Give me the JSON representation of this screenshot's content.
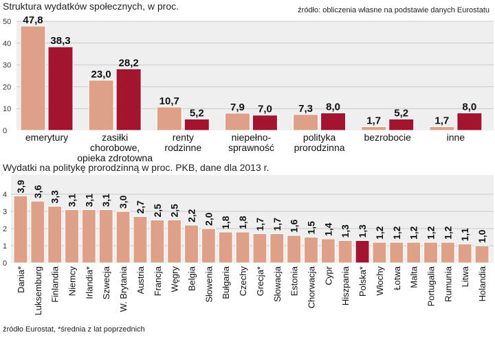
{
  "chart_data": [
    {
      "type": "bar",
      "title": "Struktura wydatków społecznych, w proc.",
      "source": "źródło: obliczenia własne na podstawie danych Eurostatu",
      "categories": [
        [
          "emerytury"
        ],
        [
          "zasiłki",
          "chorobowe,",
          "opieka zdrotowna"
        ],
        [
          "renty",
          "rodzinne"
        ],
        [
          "niepełno-",
          "sprawność"
        ],
        [
          "polityka",
          "prorodzinna"
        ],
        [
          "bezrobocie"
        ],
        [
          "inne"
        ]
      ],
      "series": [
        {
          "values": [
            47.8,
            23.0,
            10.7,
            7.9,
            7.3,
            1.7,
            1.7
          ],
          "labels": [
            "47,8",
            "23,0",
            "10,7",
            "7,9",
            "7,3",
            "1,7",
            "1,7"
          ]
        },
        {
          "values": [
            38.3,
            28.2,
            5.2,
            7.0,
            8.0,
            5.2,
            8.0
          ],
          "labels": [
            "38,3",
            "28,2",
            "5,2",
            "7,0",
            "8,0",
            "5,2",
            "8,0"
          ]
        }
      ],
      "ylim": [
        0,
        50
      ],
      "yticks": [
        "0",
        "10",
        "20",
        "30",
        "40",
        "50"
      ],
      "grid": true
    },
    {
      "type": "bar",
      "title": "Wydatki na politykę prorodzinną w proc. PKB, dane dla 2013 r.",
      "categories": [
        "Dania*",
        "Luksemburg",
        "Finlandia",
        "Niemcy",
        "Irlandia*",
        "Szwecja",
        "W. Brytania",
        "Austria",
        "Francja",
        "Węgry",
        "Belgia",
        "Słowenia",
        "Bułgaria",
        "Czechy",
        "Grecja*",
        "Słowacja",
        "Estonia",
        "Chorwacja",
        "Cypr",
        "Hiszpania",
        "Polska*",
        "Włochy",
        "Łotwa",
        "Malta",
        "Portugalia",
        "Rumunia",
        "Litwa",
        "Holandia"
      ],
      "values": [
        3.9,
        3.6,
        3.3,
        3.1,
        3.1,
        3.1,
        3.0,
        2.7,
        2.5,
        2.5,
        2.2,
        2.0,
        1.8,
        1.8,
        1.7,
        1.7,
        1.6,
        1.5,
        1.4,
        1.3,
        1.3,
        1.2,
        1.2,
        1.2,
        1.2,
        1.2,
        1.1,
        1.0
      ],
      "labels": [
        "3,9",
        "3,6",
        "3,3",
        "3,1",
        "3,1",
        "3,1",
        "3,0",
        "2,7",
        "2,5",
        "2,5",
        "2,2",
        "2,0",
        "1,8",
        "1,8",
        "1,7",
        "1,7",
        "1,6",
        "1,5",
        "1,4",
        "1,3",
        "1,3",
        "1,2",
        "1,2",
        "1,2",
        "1,2",
        "1,2",
        "1,1",
        "1,0"
      ],
      "highlight": "Polska*",
      "ylim": [
        0,
        4
      ],
      "yticks": [
        "0",
        "1",
        "2",
        "3",
        "4"
      ],
      "grid": true
    }
  ],
  "footnote": "źródło Eurostat, *średnia z lat poprzednich",
  "colors": {
    "bar_light": "#dfa088",
    "bar_dark": "#a3152e",
    "bar_edge": "#ffffff",
    "panel_bg": "#efefef",
    "grid": "#c9c9c9"
  }
}
